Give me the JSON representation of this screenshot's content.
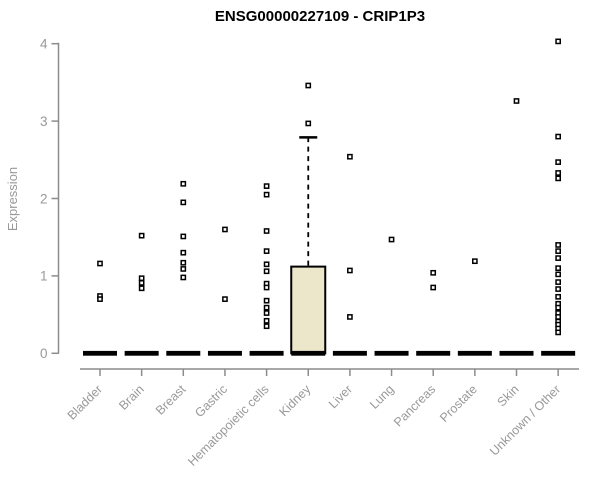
{
  "chart_data": {
    "type": "boxplot",
    "title": "ENSG00000227109 - CRIP1P3",
    "xlabel": "",
    "ylabel": "Expression",
    "ylim": [
      0,
      4
    ],
    "yticks": [
      "0",
      "1",
      "2",
      "3",
      "4"
    ],
    "grid": "off",
    "legend": null,
    "categories": [
      "Bladder",
      "Brain",
      "Breast",
      "Gastric",
      "Hematopoietic cells",
      "Kidney",
      "Liver",
      "Lung",
      "Pancreas",
      "Prostate",
      "Skin",
      "Unknown / Other"
    ],
    "series": [
      {
        "category": "Bladder",
        "median": 0,
        "box": null,
        "points": [
          1.16,
          0.74,
          0.7
        ]
      },
      {
        "category": "Brain",
        "median": 0,
        "box": null,
        "points": [
          1.52,
          0.97,
          0.91,
          0.84
        ]
      },
      {
        "category": "Breast",
        "median": 0,
        "box": null,
        "points": [
          2.19,
          1.95,
          1.51,
          1.3,
          1.17,
          1.09,
          0.98
        ]
      },
      {
        "category": "Gastric",
        "median": 0,
        "box": null,
        "points": [
          1.6,
          0.7
        ]
      },
      {
        "category": "Hematopoietic cells",
        "median": 0,
        "box": null,
        "points": [
          2.16,
          2.05,
          1.58,
          1.32,
          1.15,
          1.06,
          0.9,
          0.85,
          0.68,
          0.59,
          0.52,
          0.42,
          0.35
        ]
      },
      {
        "category": "Kidney",
        "median": 0,
        "box": {
          "q1": 0,
          "q3": 1.12,
          "whisker_high": 2.79
        },
        "points": [
          3.46,
          2.97
        ]
      },
      {
        "category": "Liver",
        "median": 0,
        "box": null,
        "points": [
          2.54,
          1.07,
          0.47
        ]
      },
      {
        "category": "Lung",
        "median": 0,
        "box": null,
        "points": [
          1.47
        ]
      },
      {
        "category": "Pancreas",
        "median": 0,
        "box": null,
        "points": [
          1.04,
          0.85
        ]
      },
      {
        "category": "Prostate",
        "median": 0,
        "box": null,
        "points": [
          1.19
        ]
      },
      {
        "category": "Skin",
        "median": 0,
        "box": null,
        "points": [
          3.26
        ]
      },
      {
        "category": "Unknown / Other",
        "median": 0,
        "box": null,
        "points": [
          4.03,
          2.8,
          2.47,
          2.33,
          2.26,
          1.4,
          1.32,
          1.23,
          1.1,
          1.02,
          0.92,
          0.83,
          0.73,
          0.64,
          0.59,
          0.52,
          0.47,
          0.41,
          0.37,
          0.32,
          0.27
        ]
      }
    ],
    "colors": {
      "title": "#000000",
      "axis_line": "#8c8c8c",
      "tick_label": "#999999",
      "box_fill": "#ece7cb",
      "box_border": "#000000",
      "median_bar": "#000000",
      "point_stroke": "#000000",
      "point_fill": "#ffffff",
      "background": "#ffffff"
    }
  }
}
